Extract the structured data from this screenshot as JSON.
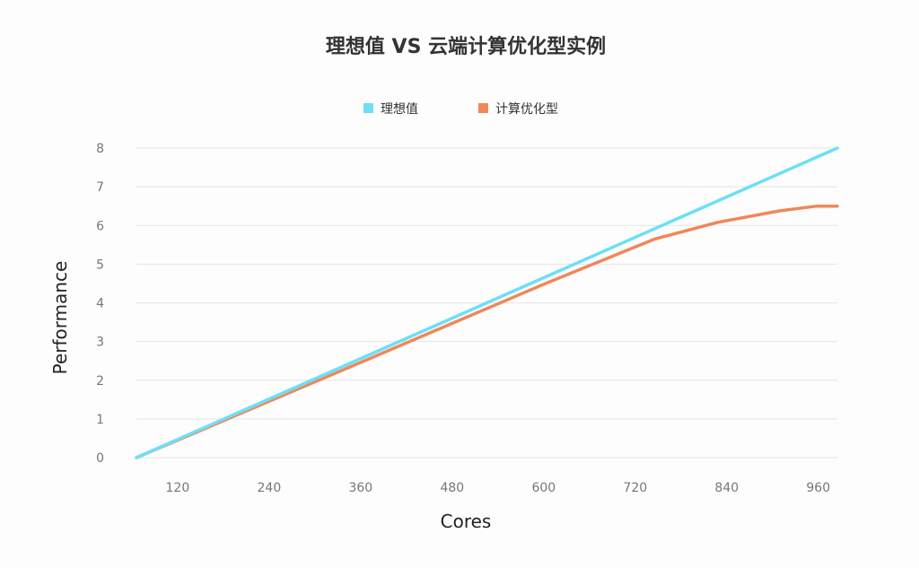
{
  "chart_data": {
    "type": "line",
    "title": "理想值 VS 云端计算优化型实例",
    "xlabel": "Cores",
    "ylabel": "Performance",
    "xlim": [
      66,
      985
    ],
    "ylim": [
      0,
      8
    ],
    "xticks": [
      120,
      240,
      360,
      480,
      600,
      720,
      840,
      960
    ],
    "yticks": [
      0,
      1,
      2,
      3,
      4,
      5,
      6,
      7,
      8
    ],
    "grid": "horizontal",
    "legend": "top-center",
    "series": [
      {
        "name": "理想值",
        "color": "#6cdff6",
        "x": [
          66,
          985
        ],
        "y": [
          0,
          8
        ]
      },
      {
        "name": "计算优化型",
        "color": "#f0875a",
        "x": [
          66,
          200,
          360,
          480,
          600,
          746,
          828,
          910,
          958,
          985
        ],
        "y": [
          0,
          1.12,
          2.46,
          3.47,
          4.48,
          5.65,
          6.08,
          6.38,
          6.5,
          6.5
        ]
      }
    ]
  }
}
